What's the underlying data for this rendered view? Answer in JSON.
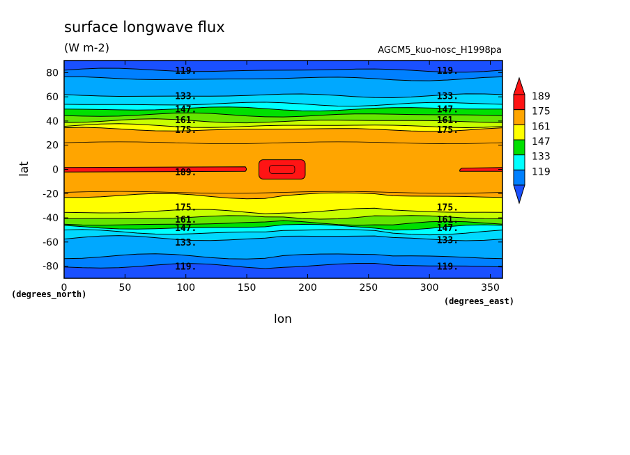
{
  "chart_data": {
    "type": "contour",
    "title": "surface longwave flux",
    "units": "(W m-2)",
    "run_label": "AGCM5_kuo-nosc_H1998pa",
    "xlabel": "lon",
    "ylabel": "lat",
    "x_units": "(degrees_east)",
    "y_units": "(degrees_north)",
    "xlim": [
      0,
      360
    ],
    "ylim": [
      -90,
      90
    ],
    "x_ticks": [
      0,
      50,
      100,
      150,
      200,
      250,
      300,
      350
    ],
    "y_ticks": [
      -80,
      -60,
      -40,
      -20,
      0,
      20,
      40,
      60,
      80
    ],
    "contour_levels": [
      119,
      133,
      147,
      161,
      175,
      189
    ],
    "contour_labels": [
      "119.",
      "133.",
      "147.",
      "161.",
      "175.",
      "189."
    ],
    "colorbar": {
      "labels": [
        "119",
        "133",
        "147",
        "161",
        "175",
        "189"
      ],
      "colors": [
        "#0080ff",
        "#00ffff",
        "#00e000",
        "#ffff00",
        "#ffa500",
        "#ff1414"
      ],
      "below_color": "#1a50ff",
      "above_color": "#ff1414"
    },
    "color_bands": [
      {
        "band": "<119",
        "color": "#1a50ff"
      },
      {
        "band": "119-126",
        "color": "#0080ff"
      },
      {
        "band": "126-133",
        "color": "#00a8ff"
      },
      {
        "band": "133-140",
        "color": "#00d8ff"
      },
      {
        "band": "140-147",
        "color": "#00ffff"
      },
      {
        "band": "147-154",
        "color": "#00e000"
      },
      {
        "band": "154-161",
        "color": "#64e600"
      },
      {
        "band": "161-168",
        "color": "#c8ff00"
      },
      {
        "band": "168-175",
        "color": "#ffff00"
      },
      {
        "band": "175-189",
        "color": "#ffa500"
      },
      {
        "band": ">189",
        "color": "#ff1414"
      }
    ],
    "zonal_profile": [
      {
        "lat": 90,
        "value": 112
      },
      {
        "lat": 82,
        "value": 119
      },
      {
        "lat": 75,
        "value": 126
      },
      {
        "lat": 61,
        "value": 133
      },
      {
        "lat": 54,
        "value": 140
      },
      {
        "lat": 50,
        "value": 147
      },
      {
        "lat": 45,
        "value": 154
      },
      {
        "lat": 40,
        "value": 161
      },
      {
        "lat": 36,
        "value": 168
      },
      {
        "lat": 33,
        "value": 175
      },
      {
        "lat": 0,
        "value": 185
      },
      {
        "lat": -22,
        "value": 175
      },
      {
        "lat": -31,
        "value": 175
      },
      {
        "lat": -35,
        "value": 168
      },
      {
        "lat": -40,
        "value": 161
      },
      {
        "lat": -45,
        "value": 154
      },
      {
        "lat": -48,
        "value": 147
      },
      {
        "lat": -52,
        "value": 140
      },
      {
        "lat": -57,
        "value": 133
      },
      {
        "lat": -72,
        "value": 126
      },
      {
        "lat": -80,
        "value": 119
      },
      {
        "lat": -90,
        "value": 112
      }
    ],
    "maxima": [
      {
        "name": "equatorial band west",
        "lon_range": [
          0,
          150
        ],
        "lat_range": [
          -1,
          1
        ],
        "level": 189
      },
      {
        "name": "equatorial band east",
        "lon_range": [
          325,
          360
        ],
        "lat_range": [
          -1,
          1
        ],
        "level": 189
      },
      {
        "name": "pacific maximum",
        "lon_range": [
          160,
          198
        ],
        "lat_range": [
          -8,
          8
        ],
        "level": 189
      }
    ],
    "label_placements": [
      {
        "text": "119.",
        "lon": 100,
        "lat": 82
      },
      {
        "text": "133.",
        "lon": 100,
        "lat": 61
      },
      {
        "text": "147.",
        "lon": 100,
        "lat": 50
      },
      {
        "text": "161.",
        "lon": 100,
        "lat": 41
      },
      {
        "text": "175.",
        "lon": 100,
        "lat": 33
      },
      {
        "text": "189.",
        "lon": 100,
        "lat": -2
      },
      {
        "text": "175.",
        "lon": 100,
        "lat": -31
      },
      {
        "text": "161.",
        "lon": 100,
        "lat": -41
      },
      {
        "text": "147.",
        "lon": 100,
        "lat": -48
      },
      {
        "text": "133.",
        "lon": 100,
        "lat": -60
      },
      {
        "text": "119.",
        "lon": 100,
        "lat": -80
      },
      {
        "text": "119.",
        "lon": 315,
        "lat": 82
      },
      {
        "text": "133.",
        "lon": 315,
        "lat": 61
      },
      {
        "text": "147.",
        "lon": 315,
        "lat": 50
      },
      {
        "text": "161.",
        "lon": 315,
        "lat": 41
      },
      {
        "text": "175.",
        "lon": 315,
        "lat": 33
      },
      {
        "text": "175.",
        "lon": 315,
        "lat": -31
      },
      {
        "text": "161.",
        "lon": 315,
        "lat": -41
      },
      {
        "text": "147.",
        "lon": 315,
        "lat": -48
      },
      {
        "text": "133.",
        "lon": 315,
        "lat": -58
      },
      {
        "text": "119.",
        "lon": 315,
        "lat": -80
      }
    ]
  }
}
